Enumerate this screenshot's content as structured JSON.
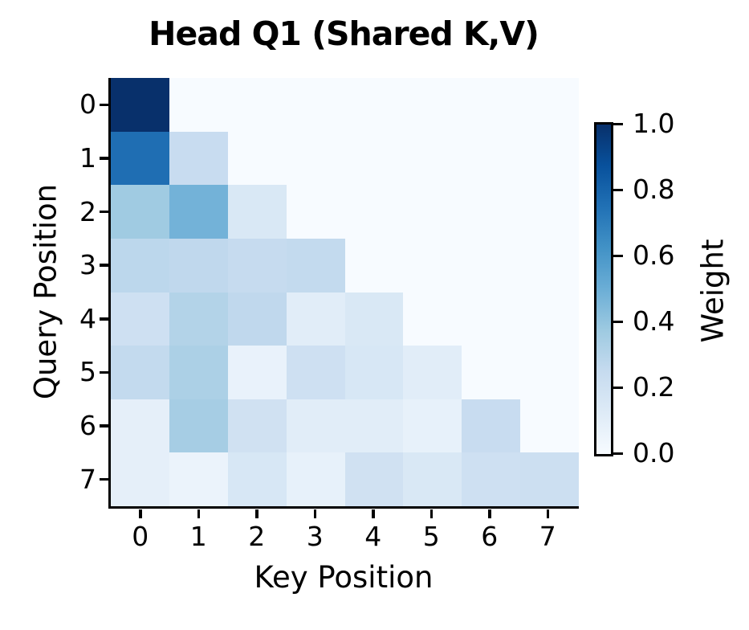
{
  "figure": {
    "background": "#ffffff",
    "text_color": "#000000"
  },
  "chart_data": {
    "type": "heatmap",
    "title": "Head Q1 (Shared K,V)",
    "xlabel": "Key Position",
    "ylabel": "Query Position",
    "x_ticks": [
      "0",
      "1",
      "2",
      "3",
      "4",
      "5",
      "6",
      "7"
    ],
    "y_ticks": [
      "0",
      "1",
      "2",
      "3",
      "4",
      "5",
      "6",
      "7"
    ],
    "grid": false,
    "matrix": [
      [
        1.0,
        0.0,
        0.0,
        0.0,
        0.0,
        0.0,
        0.0,
        0.0
      ],
      [
        0.76,
        0.24,
        0.0,
        0.0,
        0.0,
        0.0,
        0.0,
        0.0
      ],
      [
        0.37,
        0.48,
        0.15,
        0.0,
        0.0,
        0.0,
        0.0,
        0.0
      ],
      [
        0.28,
        0.27,
        0.25,
        0.26,
        0.0,
        0.0,
        0.0,
        0.0
      ],
      [
        0.21,
        0.31,
        0.27,
        0.11,
        0.15,
        0.0,
        0.0,
        0.0
      ],
      [
        0.26,
        0.33,
        0.07,
        0.21,
        0.16,
        0.11,
        0.0,
        0.0
      ],
      [
        0.09,
        0.35,
        0.2,
        0.11,
        0.11,
        0.08,
        0.24,
        0.0
      ],
      [
        0.09,
        0.06,
        0.16,
        0.08,
        0.2,
        0.15,
        0.21,
        0.22
      ]
    ],
    "colorbar": {
      "label": "Weight",
      "ticks": [
        "1.0",
        "0.8",
        "0.6",
        "0.4",
        "0.2",
        "0.0"
      ],
      "tick_values": [
        1.0,
        0.8,
        0.6,
        0.4,
        0.2,
        0.0
      ],
      "vmin": 0.0,
      "vmax": 1.0
    },
    "colormap": {
      "name": "Blues",
      "anchors": [
        "#f7fbff",
        "#deebf7",
        "#c6dbef",
        "#9ecae1",
        "#6baed6",
        "#4292c6",
        "#2171b5",
        "#08519c",
        "#08306b"
      ]
    }
  }
}
